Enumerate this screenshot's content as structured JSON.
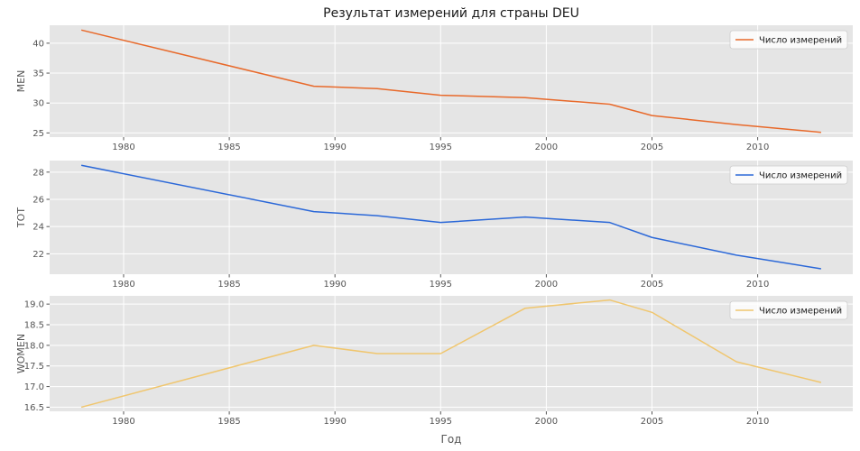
{
  "figure_title": "Результат измерений для страны DEU",
  "shared_xlabel": "Год",
  "chart_data": [
    {
      "type": "line",
      "ylabel": "MEN",
      "xlim": [
        1976.5,
        2014.5
      ],
      "ylim": [
        24.3,
        43.0
      ],
      "xticks": [
        1980,
        1985,
        1990,
        1995,
        2000,
        2005,
        2010
      ],
      "yticks": [
        25,
        30,
        35,
        40
      ],
      "ytick_decimals": 0,
      "grid": true,
      "legend_position": "top-right",
      "series": [
        {
          "name": "Число измерений",
          "color": "#E8692A",
          "x": [
            1978,
            1989,
            1992,
            1995,
            1999,
            2003,
            2005,
            2009,
            2013
          ],
          "y": [
            42.2,
            32.8,
            32.4,
            31.3,
            30.9,
            29.8,
            27.9,
            26.4,
            25.1
          ]
        }
      ]
    },
    {
      "type": "line",
      "ylabel": "TOT",
      "xlim": [
        1976.5,
        2014.5
      ],
      "ylim": [
        20.5,
        28.85
      ],
      "xticks": [
        1980,
        1985,
        1990,
        1995,
        2000,
        2005,
        2010
      ],
      "yticks": [
        22,
        24,
        26,
        28
      ],
      "ytick_decimals": 0,
      "grid": true,
      "legend_position": "top-right",
      "series": [
        {
          "name": "Число измерений",
          "color": "#2B68D8",
          "x": [
            1978,
            1989,
            1992,
            1995,
            1999,
            2003,
            2005,
            2009,
            2013
          ],
          "y": [
            28.5,
            25.1,
            24.8,
            24.3,
            24.7,
            24.3,
            23.2,
            21.9,
            20.9
          ]
        }
      ]
    },
    {
      "type": "line",
      "ylabel": "WOMEN",
      "xlim": [
        1976.5,
        2014.5
      ],
      "ylim": [
        16.4,
        19.2
      ],
      "xticks": [
        1980,
        1985,
        1990,
        1995,
        2000,
        2005,
        2010
      ],
      "yticks": [
        16.5,
        17.0,
        17.5,
        18.0,
        18.5,
        19.0
      ],
      "ytick_decimals": 1,
      "grid": true,
      "legend_position": "top-right",
      "series": [
        {
          "name": "Число измерений",
          "color": "#F0C66E",
          "x": [
            1978,
            1989,
            1992,
            1995,
            1999,
            2003,
            2005,
            2009,
            2013
          ],
          "y": [
            16.5,
            18.0,
            17.8,
            17.8,
            18.9,
            19.1,
            18.8,
            17.6,
            17.1
          ]
        }
      ]
    }
  ]
}
